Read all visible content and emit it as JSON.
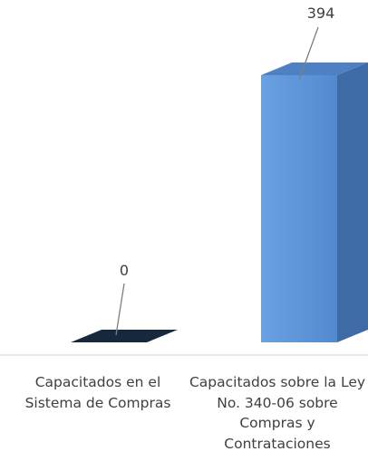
{
  "chart_data": {
    "type": "bar",
    "style": "3d-column",
    "categories": [
      "Capacitados en el Sistema de Compras",
      "Capacitados sobre la Ley No. 340-06 sobre Compras y Contrataciones"
    ],
    "values": [
      0,
      394
    ],
    "data_labels": [
      "0",
      "394"
    ],
    "ylim": [
      0,
      394
    ],
    "grid": false,
    "legend": "none",
    "title": "",
    "xlabel": "",
    "ylabel": ""
  },
  "colors": {
    "bar_front": "#5b93d8",
    "bar_front_light": "#74a8e6",
    "bar_side": "#3e6aa6",
    "bar_top": "#4f80c3",
    "zero_bar_top": "#17283d",
    "baseline": "#d9d9d9",
    "leader_line": "#7f7f7f",
    "label_text": "#404040"
  }
}
